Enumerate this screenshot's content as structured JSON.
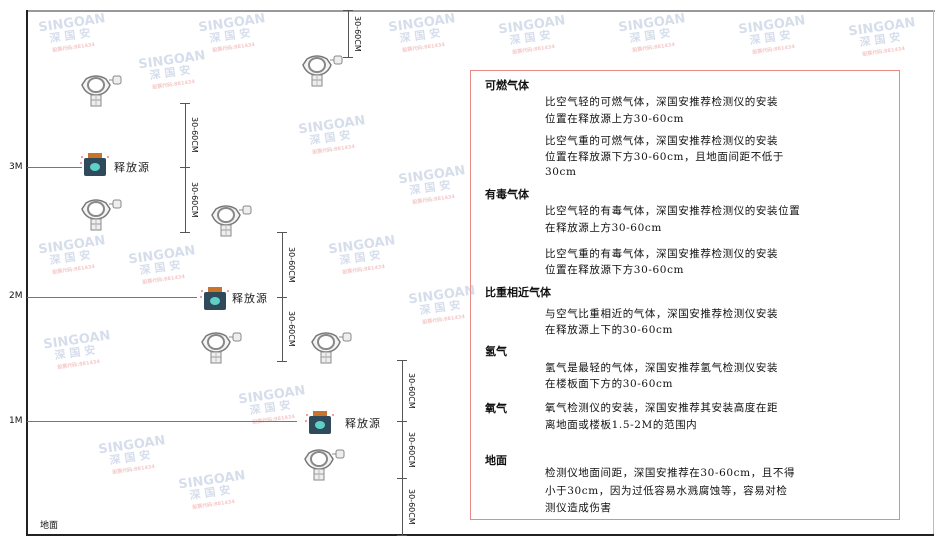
{
  "watermark": {
    "brand": "SINGOAN",
    "cn": "深国安",
    "sub": "股票代码:881434"
  },
  "levels": {
    "l3": "3M",
    "l2": "2M",
    "l1": "1M",
    "floor": "地面"
  },
  "source_label": "释放源",
  "dimension_label": "30-60CM",
  "panel": {
    "combustible": {
      "heading": "可燃气体",
      "light": [
        "比空气轻的可燃气体，深国安推荐检测仪的安装",
        "位置在释放源上方30-60cm"
      ],
      "heavy": [
        "比空气重的可燃气体，深国安推荐检测仪的安装",
        "位置在释放源下方30-60cm，且地面间距不低于",
        "30cm"
      ]
    },
    "toxic": {
      "heading": "有毒气体",
      "light": [
        "比空气轻的有毒气体，深国安推荐检测仪的安装位置",
        "在释放源上方30-60cm"
      ],
      "heavy": [
        "比空气重的有毒气体，深国安推荐检测仪的安装",
        "位置在释放源下方30-60cm"
      ]
    },
    "similar": {
      "heading": "比重相近气体",
      "lines": [
        "与空气比重相近的气体，深国安推荐检测仪安装",
        "在释放源上下的30-60cm"
      ]
    },
    "hydrogen": {
      "heading": "氢气",
      "lines": [
        "氢气是最轻的气体，深国安推荐氢气检测仪安装",
        "在楼板面下方的30-60cm"
      ]
    },
    "oxygen": {
      "heading": "氧气",
      "lines": [
        "氧气检测仪的安装，深国安推荐其安装高度在距",
        "离地面或楼板1.5-2M的范围内"
      ]
    },
    "ground": {
      "heading": "地面",
      "lines": [
        "检测仪地面间距，深国安推荐在30-60cm，且不得",
        "小于30cm，因为过低容易水溅腐蚀等，容易对检",
        "测仪造成伤害"
      ]
    }
  },
  "colors": {
    "panel_border": "#e88a8a",
    "source_body": "#2f4a5a",
    "source_cap": "#c8742a",
    "source_face": "#5fd0c8"
  }
}
